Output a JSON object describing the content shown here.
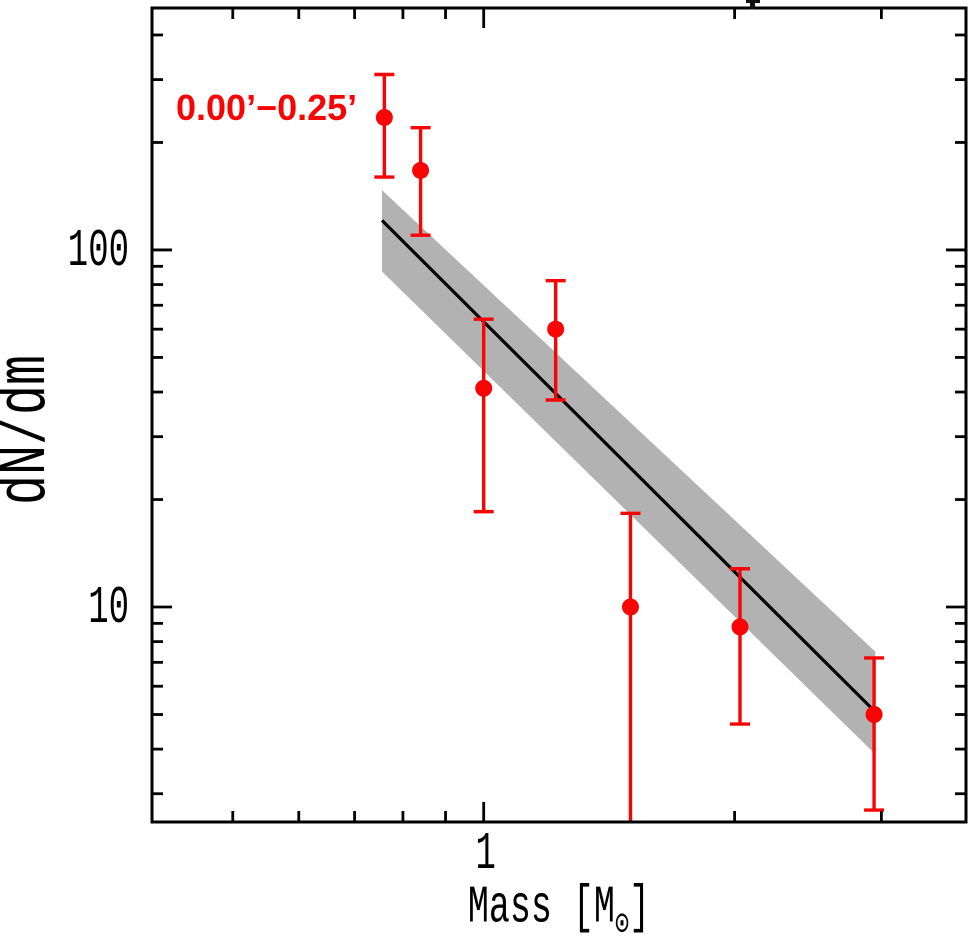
{
  "labels": {
    "ylabel": "dN/dm",
    "xlabel_pre": "Mass [M",
    "xlabel_sun": "⊙",
    "xlabel_post": "]"
  },
  "colors": {
    "axis": "#000000",
    "data_red": "#f90404",
    "band_gray": "#b2b2b2",
    "fit_black": "#000000"
  },
  "chart_data": {
    "type": "scatter",
    "title": "",
    "xlabel": "Mass [M⊙]",
    "ylabel": "dN/dm",
    "xscale": "log",
    "yscale": "log",
    "xlim": [
      0.4,
      3.79
    ],
    "ylim": [
      2.5,
      476
    ],
    "grid": false,
    "legend": "none",
    "annotation": {
      "text": "0.00’−0.25’",
      "color": "#f90404",
      "x": 0.43,
      "y": 255
    },
    "x_major_ticks": [
      {
        "value": 1,
        "label": "1"
      }
    ],
    "x_minor_ticks": [
      0.4,
      0.5,
      0.6,
      0.7,
      0.8,
      0.9,
      2,
      3
    ],
    "y_major_ticks": [
      {
        "value": 10,
        "label": "10"
      },
      {
        "value": 100,
        "label": "100"
      }
    ],
    "y_minor_ticks": [
      3,
      4,
      5,
      6,
      7,
      8,
      9,
      20,
      30,
      40,
      50,
      60,
      70,
      80,
      90,
      200,
      300,
      400
    ],
    "series": [
      {
        "name": "confidence-band",
        "type": "band",
        "color": "#b2b2b2",
        "x": [
          0.755,
          2.95
        ],
        "upper": [
          147,
          7.5
        ],
        "lower": [
          87,
          3.87
        ]
      },
      {
        "name": "power-law-fit",
        "type": "line",
        "color": "#000000",
        "x": [
          0.755,
          2.945
        ],
        "y": [
          121,
          5.1
        ],
        "slope_loglog": -2.35
      },
      {
        "name": "binned-mass-function-0.00-0.25-arcmin",
        "type": "scatter_errorbar",
        "color": "#f90404",
        "points": [
          {
            "mass": 0.76,
            "dndm": 235,
            "err_lo": 160,
            "err_hi": 310
          },
          {
            "mass": 0.84,
            "dndm": 167,
            "err_lo": 110,
            "err_hi": 220
          },
          {
            "mass": 1.0,
            "dndm": 41,
            "err_lo": 18.5,
            "err_hi": 64
          },
          {
            "mass": 1.22,
            "dndm": 60,
            "err_lo": 38,
            "err_hi": 82
          },
          {
            "mass": 1.5,
            "dndm": 10,
            "err_lo": 2.3,
            "err_hi": 18.3,
            "lo_clipped": true
          },
          {
            "mass": 2.03,
            "dndm": 8.8,
            "err_lo": 4.7,
            "err_hi": 12.8
          },
          {
            "mass": 2.94,
            "dndm": 5.0,
            "err_lo": 2.7,
            "err_hi": 7.2
          }
        ]
      }
    ]
  }
}
